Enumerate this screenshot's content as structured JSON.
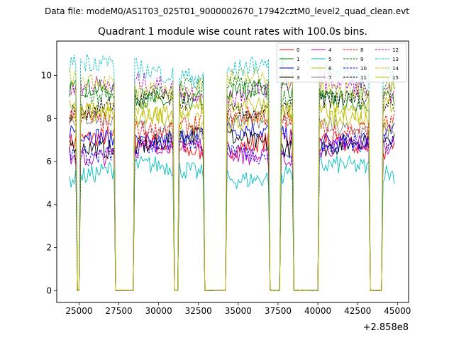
{
  "chart_data": {
    "type": "line",
    "suptitle": "Data file: modeM0/AS1T03_025T01_9000002670_17942cztM0_level2_quad_clean.evt",
    "title": "Quadrant 1 module wise count rates with 100.0s bins.",
    "xlabel": "",
    "ylabel": "",
    "offset_label": "+2.858e8",
    "xlim": [
      23600,
      45700
    ],
    "ylim": [
      -0.55,
      11.6
    ],
    "xticks": [
      25000,
      27500,
      30000,
      32500,
      35000,
      37500,
      40000,
      42500,
      45000
    ],
    "xtick_labels": [
      "25000",
      "27500",
      "30000",
      "32500",
      "35000",
      "37500",
      "40000",
      "42500",
      "45000"
    ],
    "yticks": [
      0,
      2,
      4,
      6,
      8,
      10
    ],
    "ytick_labels": [
      "0",
      "2",
      "4",
      "6",
      "8",
      "10"
    ],
    "active_segments": [
      [
        24400,
        24800
      ],
      [
        25100,
        27200
      ],
      [
        28500,
        30950
      ],
      [
        31300,
        32800
      ],
      [
        34300,
        36900
      ],
      [
        37700,
        38450
      ],
      [
        40100,
        43200
      ],
      [
        44100,
        44800
      ]
    ],
    "gap_value": 0,
    "bin_size_s": 100,
    "legend": {
      "location": "top-right",
      "entries": [
        "0",
        "1",
        "2",
        "3",
        "4",
        "5",
        "6",
        "7",
        "8",
        "9",
        "10",
        "11",
        "12",
        "13",
        "14",
        "15"
      ]
    },
    "series": [
      {
        "name": "0",
        "color": "#ff0000",
        "dash": "solid",
        "level": 6.8
      },
      {
        "name": "1",
        "color": "#008000",
        "dash": "solid",
        "level": 9.1
      },
      {
        "name": "2",
        "color": "#0000ff",
        "dash": "solid",
        "level": 7.2
      },
      {
        "name": "3",
        "color": "#000000",
        "dash": "solid",
        "level": 6.9
      },
      {
        "name": "4",
        "color": "#bf00bf",
        "dash": "solid",
        "level": 6.5
      },
      {
        "name": "5",
        "color": "#00bfbf",
        "dash": "solid",
        "level": 5.5
      },
      {
        "name": "6",
        "color": "#bfbf00",
        "dash": "solid",
        "level": 8.1
      },
      {
        "name": "7",
        "color": "#808080",
        "dash": "solid",
        "level": 7.7
      },
      {
        "name": "8",
        "color": "#ff0000",
        "dash": "dashed",
        "level": 7.8
      },
      {
        "name": "9",
        "color": "#008000",
        "dash": "dashed",
        "level": 9.3
      },
      {
        "name": "10",
        "color": "#0000ff",
        "dash": "dashed",
        "level": 6.6
      },
      {
        "name": "11",
        "color": "#000000",
        "dash": "dashed",
        "level": 8.6
      },
      {
        "name": "12",
        "color": "#bf00bf",
        "dash": "dashed",
        "level": 9.4
      },
      {
        "name": "13",
        "color": "#00bfbf",
        "dash": "dashed",
        "level": 10.3
      },
      {
        "name": "14",
        "color": "#bfbf00",
        "dash": "dashed",
        "level": 9.6
      },
      {
        "name": "15",
        "color": "#bfbf00",
        "dash": "solid",
        "level": 8.4
      }
    ]
  }
}
